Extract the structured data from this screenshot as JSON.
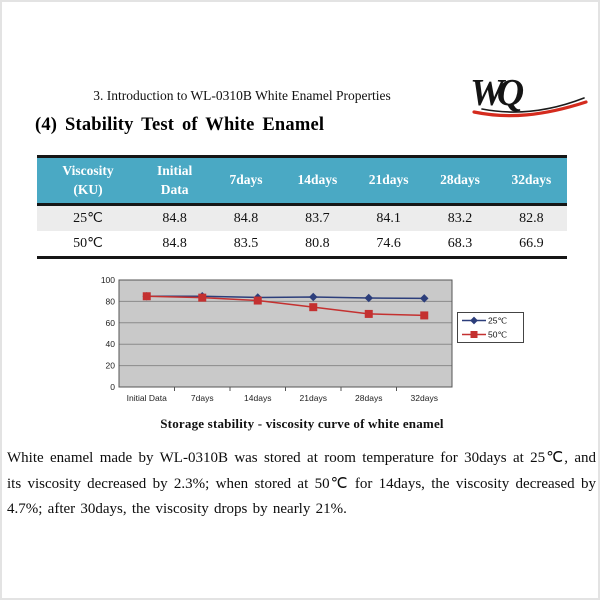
{
  "page": {
    "header_text": "3. Introduction to WL-0310B White Enamel Properties",
    "logo_text": "WQ",
    "title": "(4) Stability Test of White Enamel",
    "caption": "Storage stability - viscosity curve of white enamel",
    "body_text": "White enamel made by WL-0310B was stored at room temperature for 30days at 25℃, and its viscosity decreased by 2.3%; when stored at 50℃ for 14days, the viscosity decreased by 4.7%; after 30days, the viscosity drops by nearly 21%."
  },
  "colors": {
    "table_header_bg": "#4AA9C4",
    "table_row_alt_bg": "#ECECEC",
    "series_25c": "#2C3E7B",
    "series_50c": "#C43130",
    "plot_bg": "#C9C9C9",
    "gridline": "#8a8a8a",
    "logo_red": "#D42B1E",
    "logo_black": "#1b1b1b"
  },
  "table": {
    "columns": [
      [
        "Viscosity",
        "(KU)"
      ],
      [
        "Initial",
        "Data"
      ],
      [
        "7days"
      ],
      [
        "14days"
      ],
      [
        "21days"
      ],
      [
        "28days"
      ],
      [
        "32days"
      ]
    ],
    "rows": [
      {
        "label": "25℃",
        "values": [
          "84.8",
          "84.8",
          "83.7",
          "84.1",
          "83.2",
          "82.8"
        ]
      },
      {
        "label": "50℃",
        "values": [
          "84.8",
          "83.5",
          "80.8",
          "74.6",
          "68.3",
          "66.9"
        ]
      }
    ]
  },
  "chart_data": {
    "type": "line",
    "title": "",
    "xlabel": "",
    "ylabel": "",
    "categories": [
      "Initial Data",
      "7days",
      "14days",
      "21days",
      "28days",
      "32days"
    ],
    "series": [
      {
        "name": "25℃",
        "color": "#2C3E7B",
        "marker": "diamond",
        "values": [
          84.8,
          84.8,
          83.7,
          84.1,
          83.2,
          82.8
        ]
      },
      {
        "name": "50℃",
        "color": "#C43130",
        "marker": "square",
        "values": [
          84.8,
          83.5,
          80.8,
          74.6,
          68.3,
          66.9
        ]
      }
    ],
    "ylim": [
      0,
      100
    ],
    "ytick_step": 20,
    "grid": true,
    "legend_position": "right"
  }
}
